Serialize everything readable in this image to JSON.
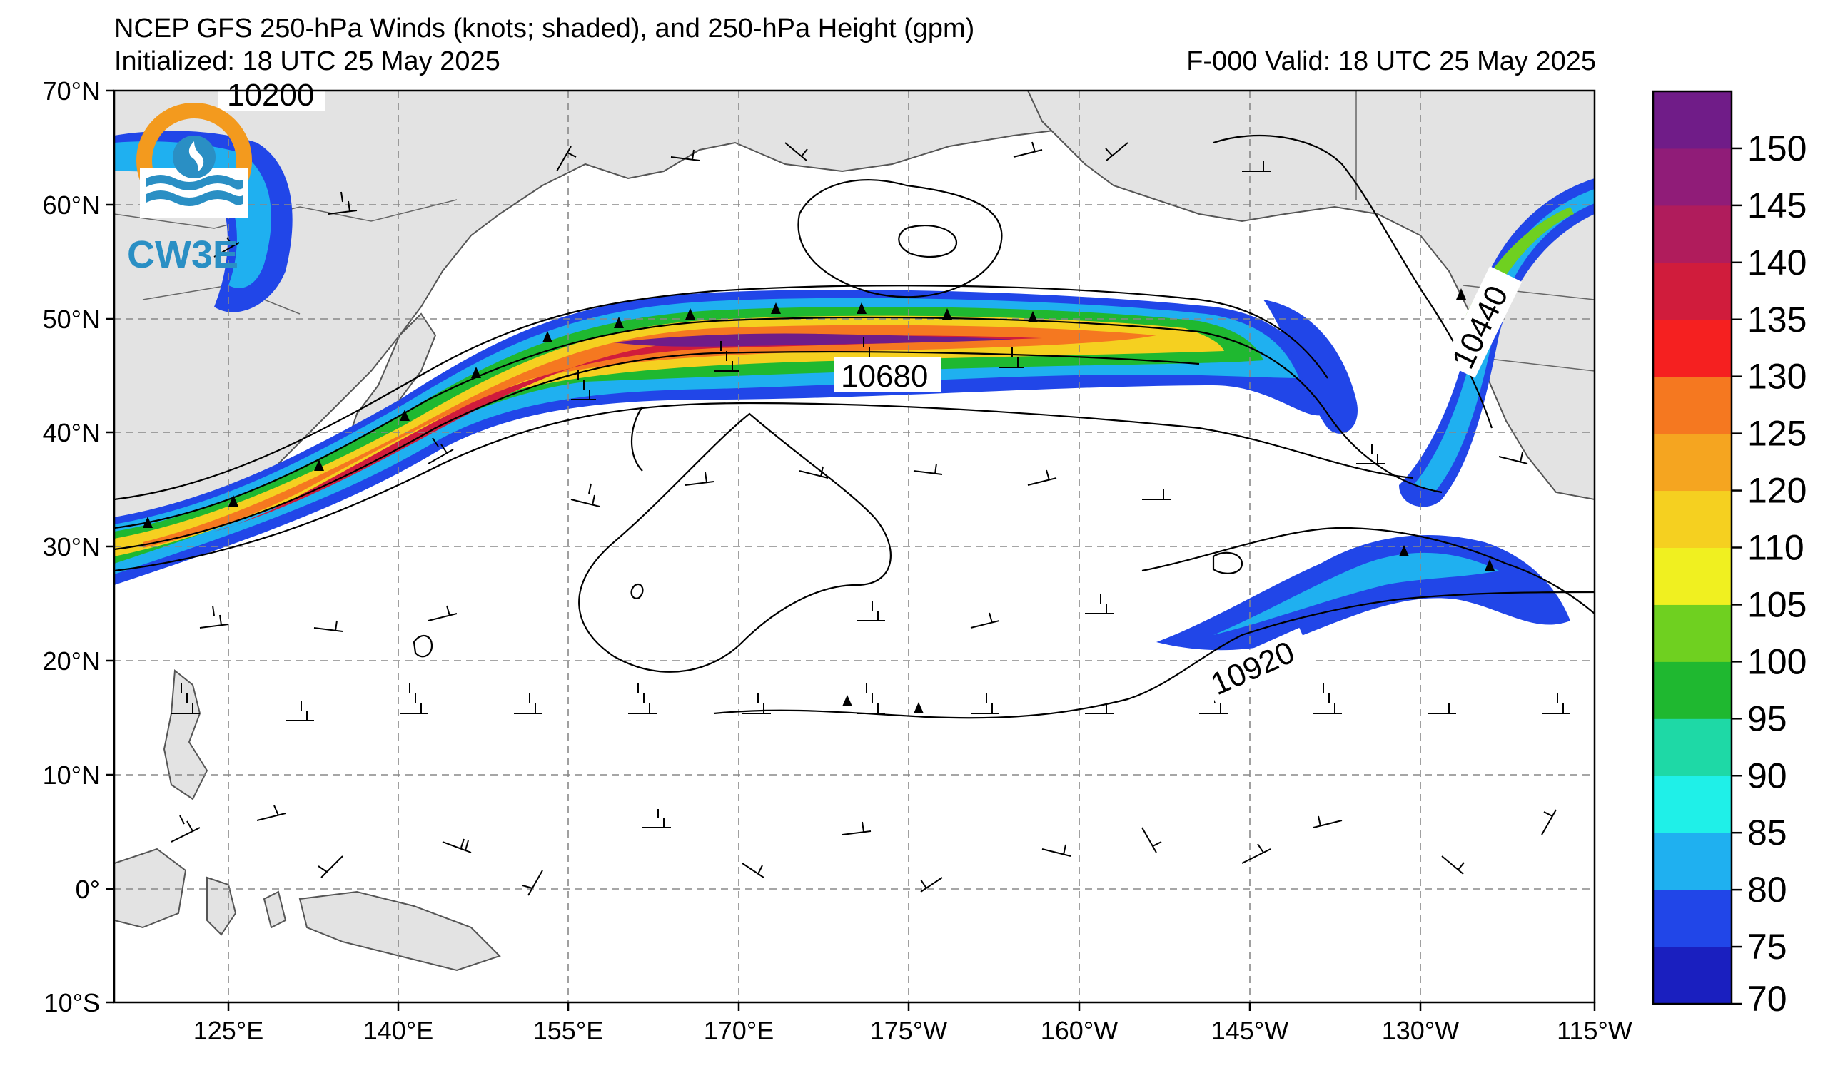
{
  "header": {
    "title": "NCEP GFS 250-hPa Winds (knots; shaded), and 250-hPa Height (gpm)",
    "initialized": "Initialized: 18 UTC 25 May 2025",
    "valid": "F-000  Valid: 18 UTC 25 May 2025"
  },
  "logo": {
    "text": "CW3E",
    "ring_color": "#f39a1e",
    "wave_color": "#2a8fc4"
  },
  "axes": {
    "lat_labels": [
      "70°N",
      "60°N",
      "50°N",
      "40°N",
      "30°N",
      "20°N",
      "10°N",
      "0°",
      "10°S"
    ],
    "lon_labels": [
      "125°E",
      "140°E",
      "155°E",
      "170°E",
      "175°W",
      "160°W",
      "145°W",
      "130°W",
      "115°W"
    ]
  },
  "contours": {
    "labels": [
      "10200",
      "10680",
      "10440",
      "10920"
    ]
  },
  "colorbar": {
    "ticks": [
      "150",
      "145",
      "140",
      "135",
      "130",
      "125",
      "120",
      "110",
      "105",
      "100",
      "95",
      "90",
      "85",
      "80",
      "75",
      "70"
    ],
    "colors": [
      "#1a1fbf",
      "#2146e8",
      "#1fb0f0",
      "#1ff0e8",
      "#1ed9a6",
      "#1fb830",
      "#6fd020",
      "#f0f020",
      "#f5d020",
      "#f5a520",
      "#f57820",
      "#f52020",
      "#d01c3c",
      "#b01c5c",
      "#901c78",
      "#701c88"
    ]
  }
}
